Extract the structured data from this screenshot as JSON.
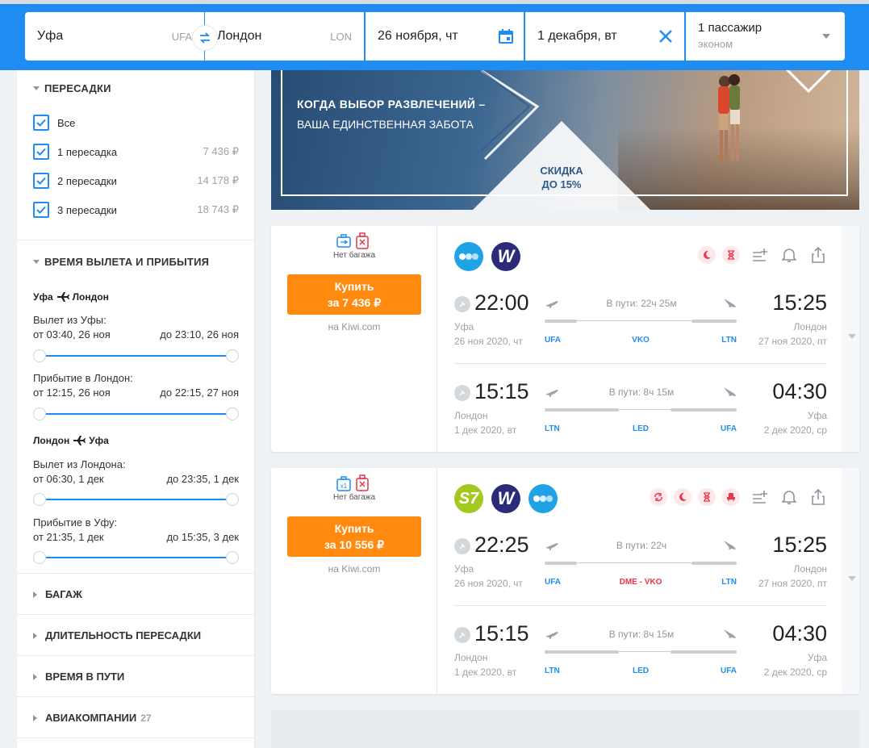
{
  "search": {
    "from": "Уфа",
    "from_code": "UFA",
    "to": "Лондон",
    "to_code": "LON",
    "date_out": "26 ноября, чт",
    "date_back": "1 декабря, вт",
    "passengers": "1 пассажир",
    "cabin": "эконом"
  },
  "sidebar": {
    "transfers_title": "ПЕРЕСАДКИ",
    "transfers": [
      {
        "label": "Все",
        "price": "",
        "checked": true
      },
      {
        "label": "1 пересадка",
        "price": "7 436 ₽",
        "checked": true
      },
      {
        "label": "2 пересадки",
        "price": "14 178 ₽",
        "checked": true
      },
      {
        "label": "3 пересадки",
        "price": "18 743 ₽",
        "checked": true
      }
    ],
    "times_title": "ВРЕМЯ ВЫЛЕТА И ПРИБЫТИЯ",
    "route1": {
      "from": "Уфа",
      "to": "Лондон"
    },
    "route2": {
      "from": "Лондон",
      "to": "Уфа"
    },
    "r1_dep_label": "Вылет из Уфы:",
    "r1_dep_from": "от 03:40, 26 ноя",
    "r1_dep_to": "до 23:10, 26 ноя",
    "r1_arr_label": "Прибытие в Лондон:",
    "r1_arr_from": "от 12:15, 26 ноя",
    "r1_arr_to": "до 22:15, 27 ноя",
    "r2_dep_label": "Вылет из Лондона:",
    "r2_dep_from": "от 06:30, 1 дек",
    "r2_dep_to": "до 23:35, 1 дек",
    "r2_arr_label": "Прибытие в Уфу:",
    "r2_arr_from": "от 21:35, 1 дек",
    "r2_arr_to": "до 15:35, 3 дек",
    "baggage": "БАГАЖ",
    "transfer_duration": "ДЛИТЕЛЬНОСТЬ ПЕРЕСАДКИ",
    "travel_time": "ВРЕМЯ В ПУТИ",
    "airlines": "АВИАКОМПАНИИ",
    "airlines_count": "27"
  },
  "banner": {
    "line1": "КОГДА ВЫБОР РАЗВЛЕЧЕНИЙ –",
    "line2": "ВАША ЕДИНСТВЕННАЯ ЗАБОТА",
    "discount1": "СКИДКА",
    "discount2": "ДО 15%"
  },
  "tickets": [
    {
      "baggage": "Нет багажа",
      "buy": "Купить",
      "price": "за 7 436 ₽",
      "seller": "на Kiwi.com",
      "outbound": {
        "dep_time": "22:00",
        "arr_time": "15:25",
        "dep_city": "Уфа",
        "arr_city": "Лондон",
        "dep_date": "26 ноя 2020, чт",
        "arr_date": "27 ноя 2020, пт",
        "duration": "В пути: 22ч 25м",
        "codes": [
          "UFA",
          "VKO",
          "LTN"
        ]
      },
      "inbound": {
        "dep_time": "15:15",
        "arr_time": "04:30",
        "dep_city": "Лондон",
        "arr_city": "Уфа",
        "dep_date": "1 дек 2020, вт",
        "arr_date": "2 дек 2020, ср",
        "duration": "В пути: 8ч 15м",
        "codes": [
          "LTN",
          "LED",
          "UFA"
        ]
      }
    },
    {
      "baggage": "Нет багажа",
      "bag_count": "x1",
      "buy": "Купить",
      "price": "за 10 556 ₽",
      "seller": "на Kiwi.com",
      "outbound": {
        "dep_time": "22:25",
        "arr_time": "15:25",
        "dep_city": "Уфа",
        "arr_city": "Лондон",
        "dep_date": "26 ноя 2020, чт",
        "arr_date": "27 ноя 2020, пт",
        "duration": "В пути: 22ч",
        "codes": [
          "UFA",
          "DME - VKO",
          "LTN"
        ]
      },
      "inbound": {
        "dep_time": "15:15",
        "arr_time": "04:30",
        "dep_city": "Лондон",
        "arr_city": "Уфа",
        "dep_date": "1 дек 2020, вт",
        "arr_date": "2 дек 2020, ср",
        "duration": "В пути: 8ч 15м",
        "codes": [
          "LTN",
          "LED",
          "UFA"
        ]
      }
    }
  ],
  "airline_logos": {
    "s7": "S7",
    "wizz": "W"
  },
  "colors": {
    "brand_blue": "#1f8cf2",
    "buy_orange": "#ff8a0f",
    "alert_red": "#e8354c"
  }
}
